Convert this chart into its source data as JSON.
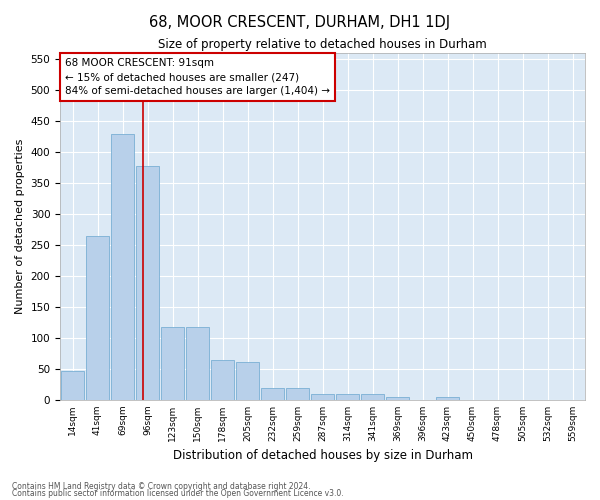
{
  "title1": "68, MOOR CRESCENT, DURHAM, DH1 1DJ",
  "title2": "Size of property relative to detached houses in Durham",
  "xlabel": "Distribution of detached houses by size in Durham",
  "ylabel": "Number of detached properties",
  "bar_labels": [
    "14sqm",
    "41sqm",
    "69sqm",
    "96sqm",
    "123sqm",
    "150sqm",
    "178sqm",
    "205sqm",
    "232sqm",
    "259sqm",
    "287sqm",
    "314sqm",
    "341sqm",
    "369sqm",
    "396sqm",
    "423sqm",
    "450sqm",
    "478sqm",
    "505sqm",
    "532sqm",
    "559sqm"
  ],
  "bar_values": [
    47,
    265,
    430,
    378,
    118,
    118,
    65,
    62,
    20,
    20,
    10,
    10,
    10,
    5,
    0,
    5,
    0,
    0,
    0,
    0,
    0
  ],
  "bar_color": "#b8d0ea",
  "bar_edge_color": "#7aafd4",
  "annotation_text": "68 MOOR CRESCENT: 91sqm\n← 15% of detached houses are smaller (247)\n84% of semi-detached houses are larger (1,404) →",
  "annotation_box_color": "#ffffff",
  "annotation_box_edge": "#cc0000",
  "red_line_color": "#cc0000",
  "ylim": [
    0,
    560
  ],
  "yticks": [
    0,
    50,
    100,
    150,
    200,
    250,
    300,
    350,
    400,
    450,
    500,
    550
  ],
  "background_color": "#dce9f5",
  "footer1": "Contains HM Land Registry data © Crown copyright and database right 2024.",
  "footer2": "Contains public sector information licensed under the Open Government Licence v3.0."
}
